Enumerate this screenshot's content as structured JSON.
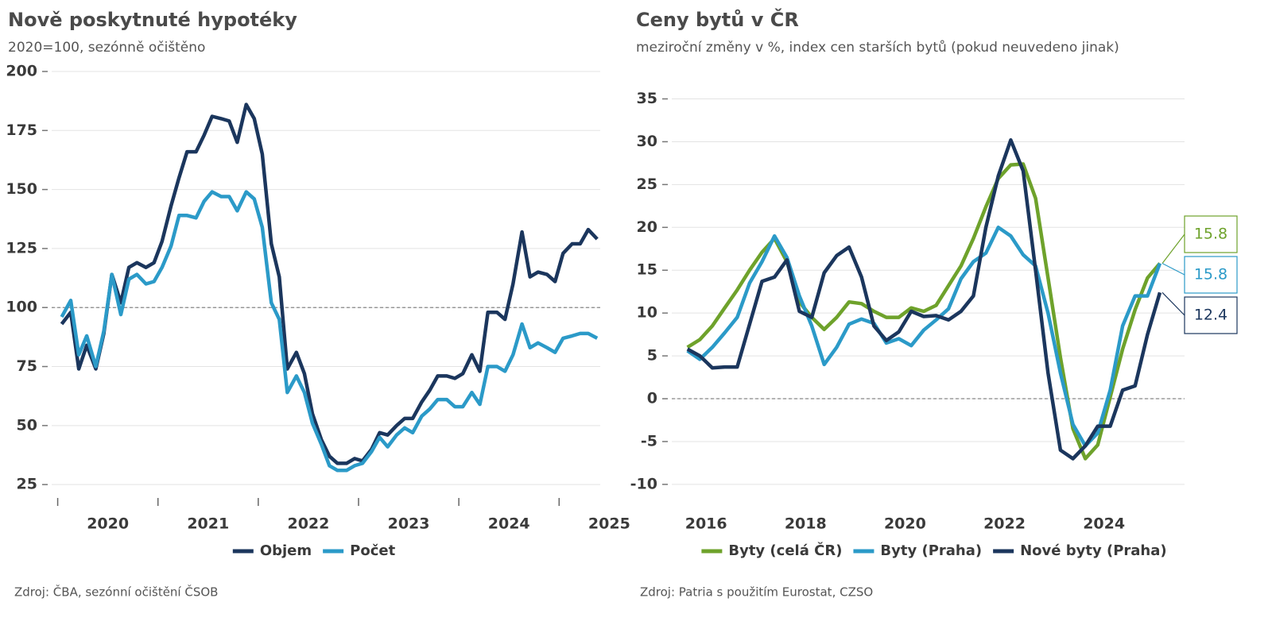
{
  "chart_data": [
    {
      "type": "line",
      "title": "Nově poskytnuté hypotéky",
      "subtitle": "2020=100, sezónně očištěno",
      "source": "Zdroj: ČBA, sezónní očištění ČSOB",
      "x": [
        2020.04,
        2020.13,
        2020.21,
        2020.29,
        2020.38,
        2020.46,
        2020.54,
        2020.63,
        2020.71,
        2020.79,
        2020.88,
        2020.96,
        2021.04,
        2021.13,
        2021.21,
        2021.29,
        2021.38,
        2021.46,
        2021.54,
        2021.63,
        2021.71,
        2021.79,
        2021.88,
        2021.96,
        2022.04,
        2022.13,
        2022.21,
        2022.29,
        2022.38,
        2022.46,
        2022.54,
        2022.63,
        2022.71,
        2022.79,
        2022.88,
        2022.96,
        2023.04,
        2023.13,
        2023.21,
        2023.29,
        2023.38,
        2023.46,
        2023.54,
        2023.63,
        2023.71,
        2023.79,
        2023.88,
        2023.96,
        2024.04,
        2024.13,
        2024.21,
        2024.29,
        2024.38,
        2024.46,
        2024.54,
        2024.63,
        2024.71,
        2024.79,
        2024.88,
        2024.96,
        2025.04,
        2025.13,
        2025.21,
        2025.29,
        2025.38
      ],
      "series": [
        {
          "name": "Objem",
          "color": "#1b365d",
          "values": [
            93,
            98,
            74,
            84,
            74,
            89,
            114,
            102,
            117,
            119,
            117,
            119,
            128,
            143,
            155,
            166,
            166,
            173,
            181,
            180,
            179,
            170,
            186,
            180,
            165,
            127,
            113,
            74,
            81,
            72,
            55,
            44,
            37,
            34,
            34,
            36,
            35,
            40,
            47,
            46,
            50,
            53,
            53,
            60,
            65,
            71,
            71,
            70,
            72,
            80,
            73,
            98,
            98,
            95,
            110,
            132,
            113,
            115,
            114,
            111,
            123,
            127,
            127,
            133,
            129
          ]
        },
        {
          "name": "Počet",
          "color": "#2b9ac8",
          "values": [
            96,
            103,
            80,
            88,
            75,
            90,
            114,
            97,
            112,
            114,
            110,
            111,
            117,
            126,
            139,
            139,
            138,
            145,
            149,
            147,
            147,
            141,
            149,
            146,
            134,
            102,
            95,
            64,
            71,
            64,
            51,
            42,
            33,
            31,
            31,
            33,
            34,
            39,
            45,
            41,
            46,
            49,
            47,
            54,
            57,
            61,
            61,
            58,
            58,
            64,
            59,
            75,
            75,
            73,
            80,
            93,
            83,
            85,
            83,
            81,
            87,
            88,
            89,
            89,
            87
          ]
        }
      ],
      "xlim": [
        2019.94,
        2025.41
      ],
      "xticks": [
        {
          "value": 2020.5,
          "label": "2020"
        },
        {
          "value": 2021.5,
          "label": "2021"
        },
        {
          "value": 2022.5,
          "label": "2022"
        },
        {
          "value": 2023.5,
          "label": "2023"
        },
        {
          "value": 2024.5,
          "label": "2024"
        },
        {
          "value": 2025.5,
          "label": "2025"
        }
      ],
      "xtick_marks": [
        2020,
        2021,
        2022,
        2023,
        2024,
        2025
      ],
      "ylim": [
        20,
        200
      ],
      "yticks": [
        25,
        50,
        75,
        100,
        125,
        150,
        175,
        200
      ],
      "reference_line": 100,
      "grid": true
    },
    {
      "type": "line",
      "title": "Ceny bytů v ČR",
      "subtitle": "meziroční změny v %, index cen starších bytů (pokud neuvedeno jinak)",
      "source": "Zdroj: Patria s použitím Eurostat, CZSO",
      "x": [
        2015.625,
        2015.875,
        2016.125,
        2016.375,
        2016.625,
        2016.875,
        2017.125,
        2017.375,
        2017.625,
        2017.875,
        2018.125,
        2018.375,
        2018.625,
        2018.875,
        2019.125,
        2019.375,
        2019.625,
        2019.875,
        2020.125,
        2020.375,
        2020.625,
        2020.875,
        2021.125,
        2021.375,
        2021.625,
        2021.875,
        2022.125,
        2022.375,
        2022.625,
        2022.875,
        2023.125,
        2023.375,
        2023.625,
        2023.875,
        2024.125,
        2024.375,
        2024.625,
        2024.875,
        2025.125
      ],
      "series": [
        {
          "name": "Byty (celá ČR)",
          "color": "#6ea22b",
          "values": [
            6.0,
            6.9,
            8.5,
            10.6,
            12.7,
            15.0,
            17.1,
            18.7,
            16.0,
            11.3,
            9.5,
            8.1,
            9.5,
            11.3,
            11.1,
            10.2,
            9.5,
            9.5,
            10.6,
            10.2,
            10.9,
            13.2,
            15.5,
            18.7,
            22.4,
            25.7,
            27.3,
            27.4,
            23.4,
            14.1,
            4.8,
            -3.5,
            -7.0,
            -5.4,
            0.2,
            5.8,
            10.4,
            14.1,
            15.8
          ]
        },
        {
          "name": "Byty (Praha)",
          "color": "#2b9ac8",
          "values": [
            5.6,
            4.6,
            6.0,
            7.7,
            9.5,
            13.5,
            16.0,
            19.0,
            16.5,
            12.0,
            8.5,
            4.0,
            6.0,
            8.7,
            9.3,
            8.8,
            6.5,
            7.0,
            6.2,
            8.0,
            9.2,
            10.5,
            14.0,
            16.0,
            17.0,
            20.0,
            19.0,
            16.8,
            15.5,
            10.0,
            3.0,
            -3.0,
            -5.5,
            -4.0,
            1.0,
            8.5,
            12.0,
            12.0,
            15.8
          ]
        },
        {
          "name": "Nové byty (Praha)",
          "color": "#1b365d",
          "values": [
            5.8,
            5.0,
            3.6,
            3.7,
            3.7,
            8.7,
            13.7,
            14.2,
            16.2,
            10.2,
            9.5,
            14.7,
            16.7,
            17.7,
            14.2,
            8.5,
            6.8,
            7.8,
            10.2,
            9.6,
            9.7,
            9.2,
            10.2,
            12.0,
            20.0,
            26.0,
            30.2,
            26.6,
            15.0,
            3.0,
            -6.0,
            -7.0,
            -5.5,
            -3.2,
            -3.2,
            1.0,
            1.5,
            7.5,
            12.4
          ]
        }
      ],
      "xlim": [
        2015.31,
        2025.62
      ],
      "xticks": [
        2016,
        2018,
        2020,
        2022,
        2024
      ],
      "ylim": [
        -11.4,
        38.2
      ],
      "yticks": [
        -10,
        -5,
        0,
        5,
        10,
        15,
        20,
        25,
        30,
        35
      ],
      "reference_line": 0,
      "end_labels": true,
      "grid": true
    }
  ]
}
